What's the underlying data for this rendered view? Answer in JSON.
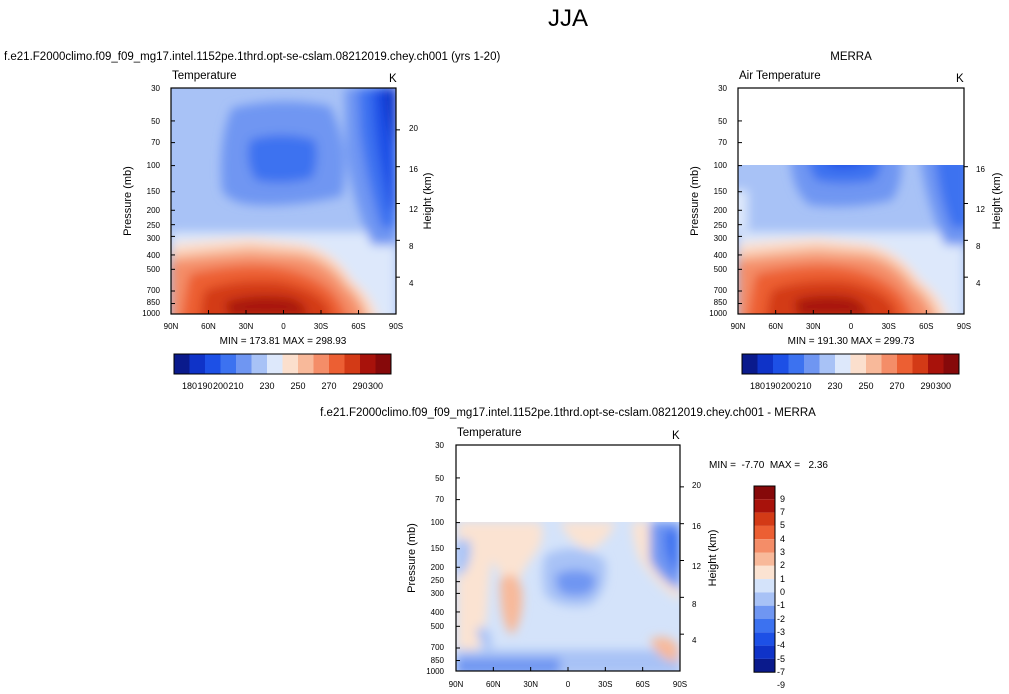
{
  "page_title": "JJA",
  "colors": {
    "scale_11": [
      "#0a1a8c",
      "#0f33c8",
      "#1d50e6",
      "#3c72f0",
      "#6f96f2",
      "#a8c2f6",
      "#dde8fb",
      "#fbdfcd",
      "#f8b99a",
      "#f48d68",
      "#ec5f33",
      "#d33a16",
      "#a8120b",
      "#86090a"
    ],
    "scale_diff": [
      "#0a1a8c",
      "#0f33c8",
      "#1d50e6",
      "#3c72f0",
      "#6f96f2",
      "#a8c2f6",
      "#d4e3fa",
      "#fbe3d2",
      "#f8b99a",
      "#f48d68",
      "#ec5f33",
      "#d33a16",
      "#a8120b",
      "#86090a"
    ]
  },
  "chart_data": [
    {
      "type": "heatmap",
      "panel_title": "f.e21.F2000climo.f09_f09_mg17.intel.1152pe.1thrd.opt-se-cslam.08212019.chey.ch001 (yrs 1-20)",
      "left_label": "Temperature",
      "right_label": "K",
      "xlabel": "",
      "ylabel": "Pressure (mb)",
      "ylabel_right": "Height (km)",
      "x_ticks": [
        "90N",
        "60N",
        "30N",
        "0",
        "30S",
        "60S",
        "90S"
      ],
      "y_ticks": [
        "30",
        "50",
        "70",
        "100",
        "150",
        "200",
        "250",
        "300",
        "400",
        "500",
        "700",
        "850",
        "1000"
      ],
      "y_ticks_right": [
        "20",
        "16",
        "12",
        "8",
        "4"
      ],
      "pressure_range": [
        30,
        1000
      ],
      "data_top_pressure": 30,
      "stats": "MIN = 173.81  MAX = 298.93",
      "colorbar_labels": [
        "180",
        "190",
        "200",
        "210",
        "230",
        "250",
        "270",
        "290",
        "300"
      ]
    },
    {
      "type": "heatmap",
      "panel_title": "MERRA",
      "left_label": "Air Temperature",
      "right_label": "K",
      "xlabel": "",
      "ylabel": "Pressure (mb)",
      "ylabel_right": "Height (km)",
      "x_ticks": [
        "90N",
        "60N",
        "30N",
        "0",
        "30S",
        "60S",
        "90S"
      ],
      "y_ticks": [
        "30",
        "50",
        "70",
        "100",
        "150",
        "200",
        "250",
        "300",
        "400",
        "500",
        "700",
        "850",
        "1000"
      ],
      "y_ticks_right": [
        "16",
        "12",
        "8",
        "4"
      ],
      "pressure_range": [
        30,
        1000
      ],
      "data_top_pressure": 100,
      "stats": "MIN = 191.30  MAX = 299.73",
      "colorbar_labels": [
        "180",
        "190",
        "200",
        "210",
        "230",
        "250",
        "270",
        "290",
        "300"
      ]
    },
    {
      "type": "heatmap",
      "panel_title": "f.e21.F2000climo.f09_f09_mg17.intel.1152pe.1thrd.opt-se-cslam.08212019.chey.ch001 - MERRA",
      "left_label": "Temperature",
      "right_label": "K",
      "xlabel": "",
      "ylabel": "Pressure (mb)",
      "ylabel_right": "Height (km)",
      "x_ticks": [
        "90N",
        "60N",
        "30N",
        "0",
        "30S",
        "60S",
        "90S"
      ],
      "y_ticks": [
        "30",
        "50",
        "70",
        "100",
        "150",
        "200",
        "250",
        "300",
        "400",
        "500",
        "700",
        "850",
        "1000"
      ],
      "y_ticks_right": [
        "20",
        "16",
        "12",
        "8",
        "4"
      ],
      "pressure_range": [
        30,
        1000
      ],
      "data_top_pressure": 100,
      "stats": "MIN =  -7.70  MAX =   2.36",
      "colorbar_labels": [
        "9",
        "7",
        "5",
        "4",
        "3",
        "2",
        "1",
        "0",
        "-1",
        "-2",
        "-3",
        "-4",
        "-5",
        "-7",
        "-9"
      ]
    }
  ]
}
